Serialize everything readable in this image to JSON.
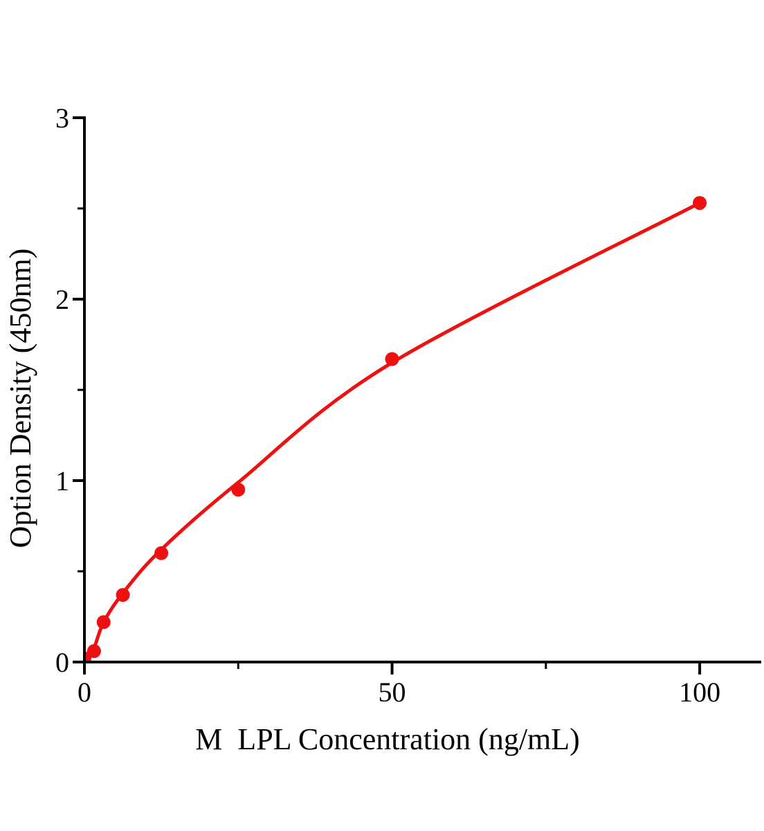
{
  "page": {
    "background": "#ffffff",
    "description": "ELISA standard curve plot"
  },
  "chart_data": {
    "type": "scatter",
    "title": "",
    "xlabel": "M  LPL Concentration (ng/mL)",
    "ylabel": "Option Density (450nm)",
    "x": [
      0,
      1.56,
      3.12,
      6.25,
      12.5,
      25,
      50,
      100
    ],
    "y": [
      0.02,
      0.06,
      0.22,
      0.37,
      0.6,
      0.95,
      1.67,
      2.53
    ],
    "fit_curve_x": [
      0,
      1.56,
      3.12,
      6.25,
      12.5,
      25,
      50,
      100
    ],
    "fit_curve_y": [
      0.01,
      0.08,
      0.22,
      0.38,
      0.62,
      0.99,
      1.65,
      2.53
    ],
    "xlim": [
      0,
      110
    ],
    "ylim": [
      0,
      3
    ],
    "x_axis": {
      "major_ticks": [
        0,
        50,
        100
      ],
      "minor_ticks": [
        25,
        75
      ],
      "tick_labels": [
        "0",
        "50",
        "100"
      ]
    },
    "y_axis": {
      "major_ticks": [
        0,
        1,
        2,
        3
      ],
      "minor_ticks": [
        0.5,
        1.5,
        2.5
      ],
      "tick_labels": [
        "0",
        "1",
        "2",
        "3"
      ]
    },
    "grid": false,
    "legend": null,
    "colors": {
      "line": "#ee1111",
      "marker": "#ee1111",
      "axis": "#000000",
      "background": "#ffffff"
    }
  }
}
